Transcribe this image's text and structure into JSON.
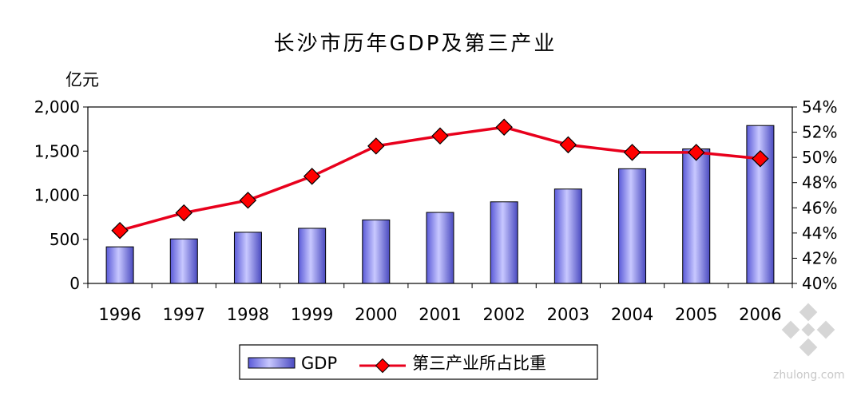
{
  "chart_data": {
    "type": "bar",
    "title": "长沙市历年GDP及第三产业",
    "ylabel": "亿元",
    "categories": [
      "1996",
      "1997",
      "1998",
      "1999",
      "2000",
      "2001",
      "2002",
      "2003",
      "2004",
      "2005",
      "2006"
    ],
    "series": [
      {
        "name": "GDP",
        "type": "bar",
        "axis": "left",
        "color": "#8080ff",
        "values": [
          415,
          505,
          580,
          625,
          720,
          805,
          925,
          1070,
          1300,
          1525,
          1790
        ]
      },
      {
        "name": "第三产业所占比重",
        "type": "line",
        "axis": "right",
        "color": "#e8001c",
        "marker_color": "#ff0000",
        "values": [
          44.2,
          45.6,
          46.6,
          48.5,
          50.9,
          51.7,
          52.4,
          51.0,
          50.4,
          50.4,
          49.9
        ]
      }
    ],
    "y_left": {
      "ylim": [
        0,
        2000
      ],
      "ticks": [
        0,
        500,
        1000,
        1500,
        2000
      ],
      "tick_labels": [
        "0",
        "500",
        "1,000",
        "1,500",
        "2,000"
      ]
    },
    "y_right": {
      "ylim": [
        40,
        54
      ],
      "ticks": [
        40,
        42,
        44,
        46,
        48,
        50,
        52,
        54
      ],
      "tick_labels": [
        "40%",
        "42%",
        "44%",
        "46%",
        "48%",
        "50%",
        "52%",
        "54%"
      ]
    },
    "grid": false,
    "legend_position": "bottom"
  },
  "watermark": {
    "text": "zhulong.com"
  }
}
